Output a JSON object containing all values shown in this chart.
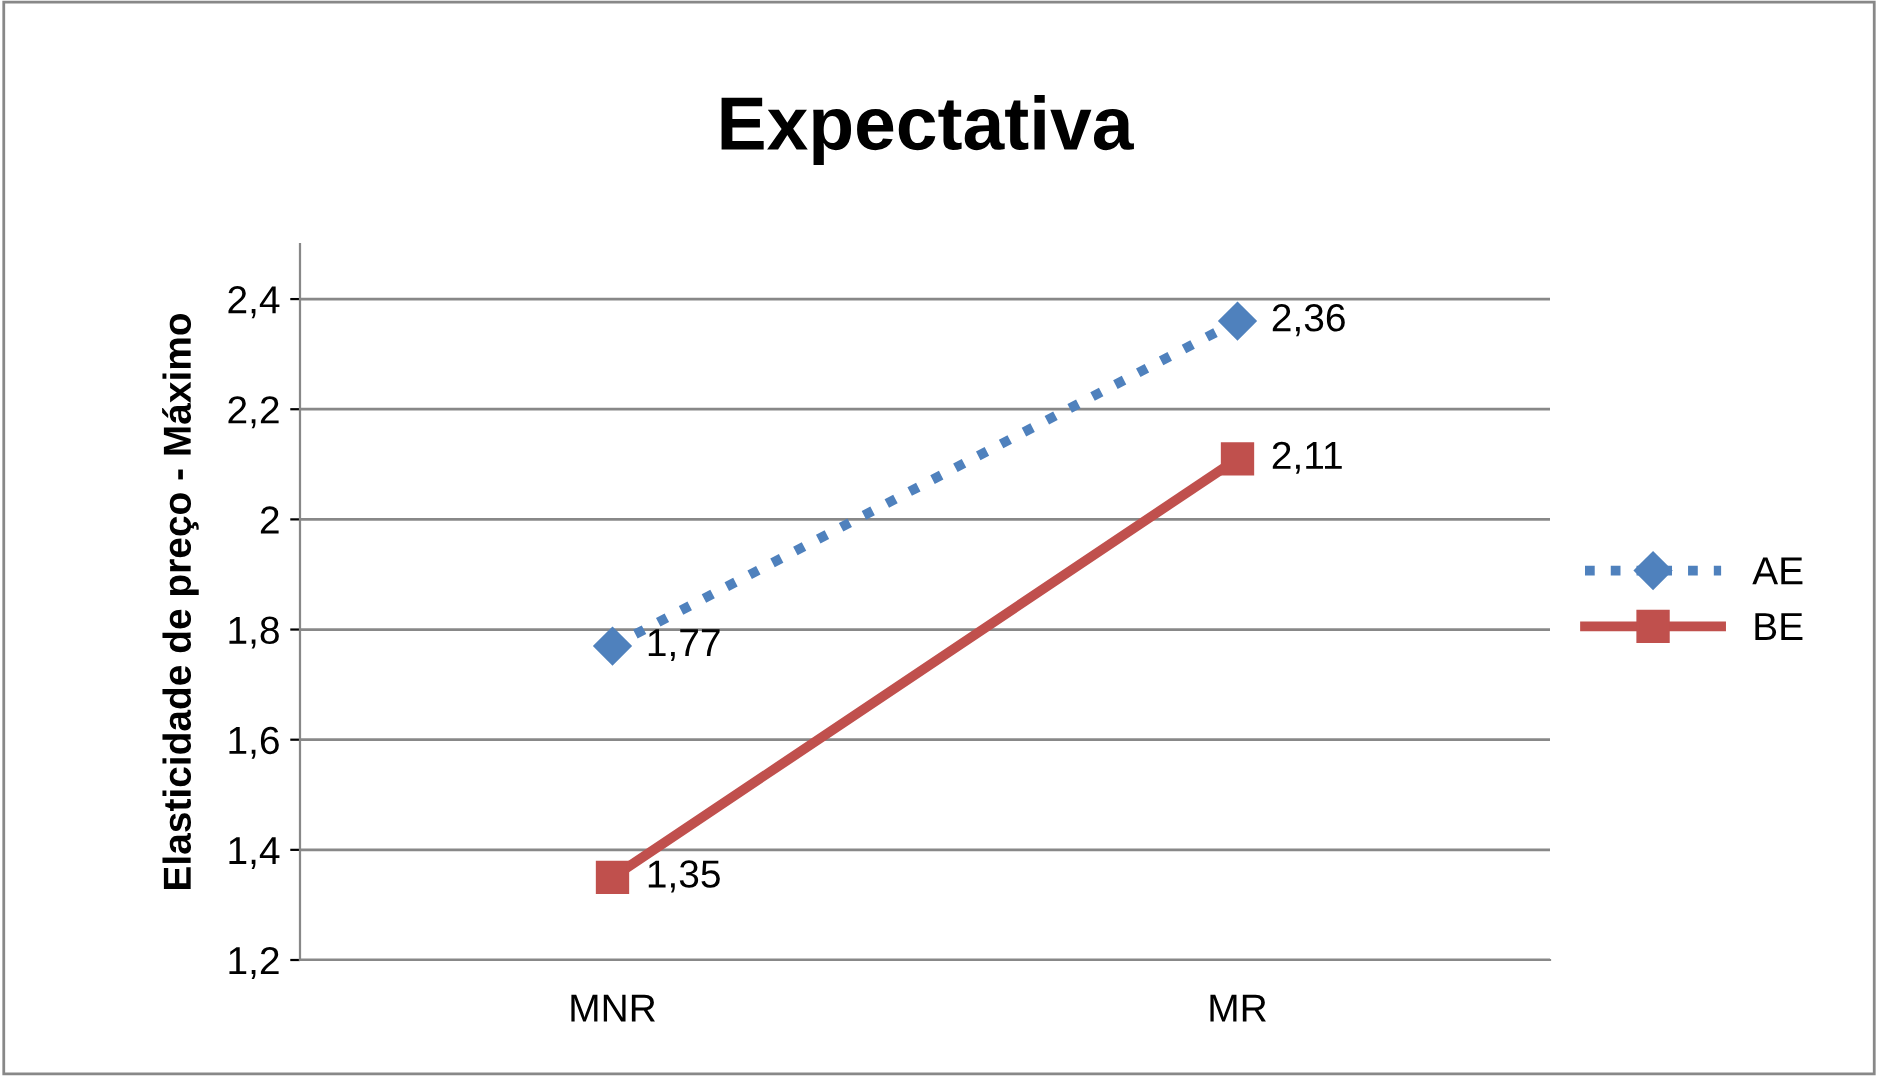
{
  "chart_data": {
    "type": "line",
    "title": "Expectativa",
    "ylabel": "Elasticidade de preço - Máximo",
    "categories": [
      "MNR",
      "MR"
    ],
    "series": [
      {
        "name": "AE",
        "color": "#4f81bd",
        "values": [
          1.77,
          2.36
        ],
        "marker": "diamond",
        "line_style": "dotted",
        "value_labels": [
          "1,77",
          "2,36"
        ]
      },
      {
        "name": "BE",
        "color": "#c0504d",
        "values": [
          1.35,
          2.11
        ],
        "marker": "square",
        "line_style": "solid",
        "value_labels": [
          "1,35",
          "2,11"
        ]
      }
    ],
    "ylim": [
      1.2,
      2.5
    ],
    "yticks": [
      {
        "value": 1.2,
        "label": "1,2"
      },
      {
        "value": 1.4,
        "label": "1,4"
      },
      {
        "value": 1.6,
        "label": "1,6"
      },
      {
        "value": 1.8,
        "label": "1,8"
      },
      {
        "value": 2,
        "label": "2"
      },
      {
        "value": 2.2,
        "label": "2,2"
      },
      {
        "value": 2.4,
        "label": "2,4"
      }
    ],
    "grid": "y",
    "legend": "right"
  }
}
